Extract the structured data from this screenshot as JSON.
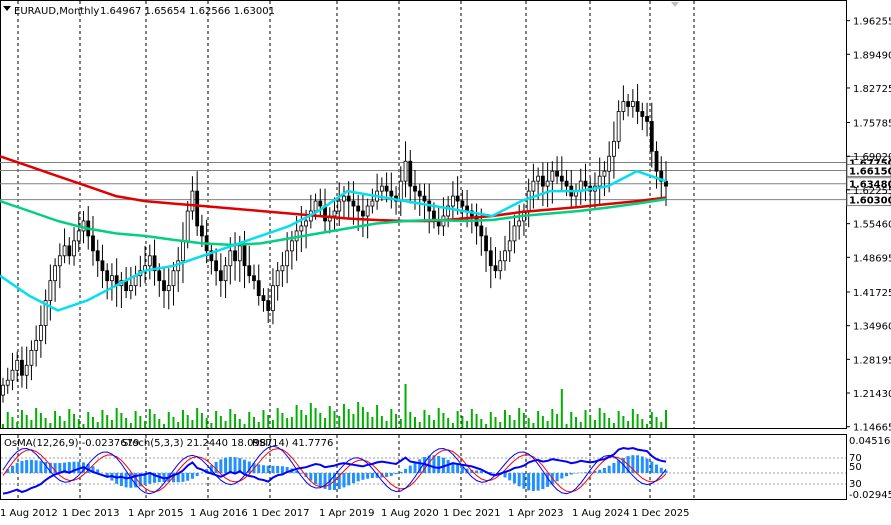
{
  "window": {
    "symbol": "EURAUD,Monthly",
    "ohlc": "1.64967 1.65654 1.62566 1.63001"
  },
  "colors": {
    "bull": "#000000",
    "bear": "#000000",
    "ema200": "#e00000",
    "ema144": "#00d080",
    "ema50": "#00e0f0",
    "volume": "#00b000",
    "osma": "#1e90ff",
    "stoch_main": "#0000ff",
    "stoch_signal": "#ff0000",
    "rsi": "#0000ff",
    "grid": "#000000",
    "price_box": "#ffffff"
  },
  "oscillator": {
    "osma_label": "OsMA(12,26,9) -0.0237679",
    "stoch_label": "Stoch(5,3,3) 21.2440 18.0987",
    "rsi_label": "RSI(14) 41.7776",
    "scale_top": "0.0451648",
    "scale_bottom": "-0.029457",
    "levels": [
      "70",
      "50",
      "30"
    ]
  },
  "price_levels": {
    "level1": "1.67750",
    "level2": "1.66150",
    "level3": "1.63480",
    "level4": "1.60300"
  },
  "chart_data": {
    "type": "candlestick",
    "title": "EURAUD,Monthly",
    "x_ticks": [
      "1 Aug 2012",
      "1 Dec 2013",
      "1 Apr 2015",
      "1 Aug 2016",
      "1 Dec 2017",
      "1 Apr 2019",
      "1 Aug 2020",
      "1 Dec 2021",
      "1 Apr 2023",
      "1 Aug 2024",
      "1 Dec 2025"
    ],
    "y_ticks": [
      "1.96255",
      "1.89490",
      "1.82725",
      "1.75785",
      "1.69020",
      "1.62255",
      "1.55460",
      "1.48695",
      "1.41725",
      "1.34960",
      "1.28195",
      "1.21430",
      "1.14665"
    ],
    "ylim": [
      1.146,
      2.0
    ],
    "closes": [
      1.23,
      1.24,
      1.26,
      1.28,
      1.25,
      1.27,
      1.3,
      1.32,
      1.35,
      1.4,
      1.44,
      1.47,
      1.49,
      1.51,
      1.49,
      1.52,
      1.54,
      1.56,
      1.53,
      1.5,
      1.48,
      1.46,
      1.44,
      1.45,
      1.43,
      1.44,
      1.42,
      1.43,
      1.45,
      1.46,
      1.47,
      1.49,
      1.46,
      1.44,
      1.42,
      1.43,
      1.46,
      1.48,
      1.52,
      1.58,
      1.62,
      1.55,
      1.53,
      1.5,
      1.48,
      1.46,
      1.44,
      1.47,
      1.5,
      1.48,
      1.51,
      1.47,
      1.45,
      1.44,
      1.41,
      1.4,
      1.38,
      1.43,
      1.46,
      1.47,
      1.5,
      1.52,
      1.54,
      1.55,
      1.56,
      1.58,
      1.6,
      1.59,
      1.56,
      1.57,
      1.58,
      1.6,
      1.61,
      1.6,
      1.59,
      1.58,
      1.57,
      1.59,
      1.6,
      1.62,
      1.63,
      1.62,
      1.61,
      1.6,
      1.64,
      1.68,
      1.63,
      1.62,
      1.61,
      1.6,
      1.58,
      1.56,
      1.55,
      1.57,
      1.59,
      1.61,
      1.6,
      1.59,
      1.58,
      1.57,
      1.55,
      1.53,
      1.5,
      1.47,
      1.46,
      1.48,
      1.5,
      1.52,
      1.55,
      1.56,
      1.58,
      1.62,
      1.64,
      1.65,
      1.63,
      1.64,
      1.66,
      1.65,
      1.64,
      1.63,
      1.61,
      1.62,
      1.64,
      1.63,
      1.62,
      1.63,
      1.65,
      1.66,
      1.69,
      1.72,
      1.78,
      1.8,
      1.79,
      1.8,
      1.78,
      1.77,
      1.76,
      1.7,
      1.66,
      1.64,
      1.63
    ],
    "series": [
      {
        "name": "EMA200",
        "values": [
          1.69,
          1.67,
          1.65,
          1.63,
          1.61,
          1.6,
          1.595,
          1.59,
          1.585,
          1.58,
          1.575,
          1.57,
          1.565,
          1.562,
          1.56,
          1.56,
          1.565,
          1.57,
          1.578,
          1.583,
          1.588,
          1.594,
          1.6,
          1.607
        ]
      },
      {
        "name": "EMA144",
        "values": [
          1.6,
          1.58,
          1.56,
          1.545,
          1.535,
          1.53,
          1.522,
          1.515,
          1.512,
          1.515,
          1.525,
          1.535,
          1.545,
          1.555,
          1.56,
          1.562,
          1.56,
          1.562,
          1.57,
          1.575,
          1.58,
          1.587,
          1.595,
          1.604
        ]
      },
      {
        "name": "EMA50",
        "values": [
          1.45,
          1.41,
          1.38,
          1.4,
          1.43,
          1.46,
          1.47,
          1.49,
          1.51,
          1.53,
          1.55,
          1.58,
          1.62,
          1.61,
          1.6,
          1.59,
          1.58,
          1.57,
          1.6,
          1.62,
          1.62,
          1.63,
          1.66,
          1.64
        ]
      }
    ]
  }
}
